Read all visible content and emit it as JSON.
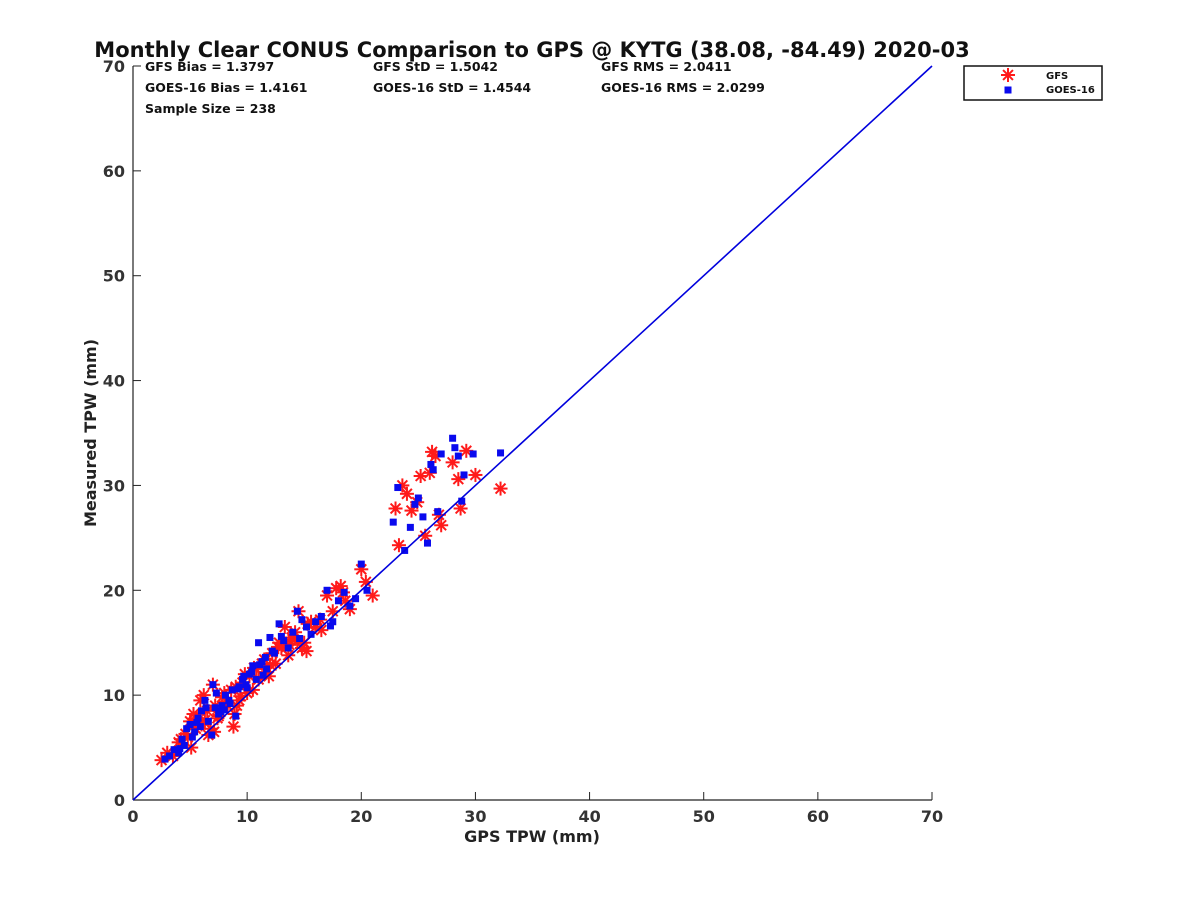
{
  "chart_data": {
    "type": "scatter",
    "title": "Monthly Clear CONUS Comparison to GPS @ KYTG (38.08, -84.49) 2020-03",
    "xlabel": "GPS TPW (mm)",
    "ylabel": "Measured TPW (mm)",
    "xlim": [
      0,
      70
    ],
    "ylim": [
      0,
      70
    ],
    "xticks": [
      0,
      10,
      20,
      30,
      40,
      50,
      60,
      70
    ],
    "yticks": [
      0,
      10,
      20,
      30,
      40,
      50,
      60,
      70
    ],
    "grid": false,
    "legend_position": "top-right-outside",
    "stats": [
      [
        "GFS Bias = 1.3797",
        "GFS StD = 1.5042",
        "GFS RMS = 2.0411"
      ],
      [
        "GOES-16 Bias = 1.4161",
        "GOES-16 StD = 1.4544",
        "GOES-16 RMS = 2.0299"
      ],
      [
        "Sample Size = 238",
        "",
        ""
      ]
    ],
    "reference_line": {
      "x": [
        0,
        70
      ],
      "y": [
        0,
        70
      ],
      "color": "#0000dd"
    },
    "series": [
      {
        "name": "GFS",
        "marker": "asterisk",
        "color": "#ff1a1a",
        "x": [
          2.5,
          3.0,
          3.5,
          4.0,
          4.2,
          4.6,
          5.0,
          5.3,
          5.6,
          5.9,
          6.2,
          6.5,
          6.8,
          7.0,
          7.2,
          7.5,
          7.8,
          8.0,
          8.3,
          8.6,
          8.8,
          9.0,
          9.3,
          9.6,
          9.8,
          10.0,
          10.2,
          10.5,
          10.8,
          11.0,
          11.3,
          11.6,
          11.9,
          12.2,
          12.5,
          12.8,
          13.0,
          13.3,
          13.6,
          13.9,
          14.2,
          14.5,
          14.8,
          15.0,
          15.3,
          15.6,
          16.0,
          16.4,
          17.0,
          17.5,
          17.8,
          18.2,
          18.6,
          19.0,
          20.0,
          20.4,
          21.0,
          4.8,
          5.5,
          6.0,
          6.3,
          7.1,
          7.4,
          8.2,
          8.9,
          9.4,
          10.6,
          11.5,
          12.0,
          13.7,
          14.0,
          15.2,
          16.5,
          23.0,
          23.3,
          23.6,
          24.0,
          24.4,
          24.9,
          25.2,
          25.6,
          26.0,
          26.2,
          26.5,
          26.8,
          27.0,
          28.0,
          28.5,
          28.7,
          29.2,
          30.0,
          32.2,
          5.1,
          6.6,
          9.1,
          12.7,
          14.4,
          18.4
        ],
        "y": [
          3.8,
          4.5,
          4.2,
          5.5,
          5.8,
          6.3,
          7.5,
          8.2,
          7.8,
          9.5,
          10.0,
          8.5,
          6.8,
          11.0,
          9.0,
          8.0,
          9.8,
          10.2,
          9.0,
          10.5,
          7.0,
          10.8,
          9.5,
          11.2,
          12.0,
          10.2,
          11.8,
          10.5,
          12.5,
          11.5,
          13.0,
          12.2,
          11.8,
          14.0,
          13.0,
          15.0,
          14.5,
          16.5,
          13.8,
          15.5,
          16.0,
          18.0,
          14.5,
          15.0,
          16.8,
          17.0,
          16.5,
          17.2,
          19.5,
          18.0,
          20.2,
          20.4,
          19.0,
          18.2,
          22.0,
          20.8,
          19.5,
          6.0,
          6.8,
          7.2,
          7.6,
          6.5,
          7.8,
          9.4,
          8.2,
          9.9,
          12.6,
          13.4,
          12.9,
          14.8,
          15.3,
          14.2,
          16.2,
          27.8,
          24.3,
          30.0,
          29.2,
          27.6,
          28.4,
          30.9,
          25.2,
          31.2,
          33.2,
          32.8,
          27.2,
          26.2,
          32.2,
          30.6,
          27.8,
          33.3,
          31.0,
          29.7,
          5.0,
          6.2,
          9.0,
          14.6,
          15.2,
          19.8
        ]
      },
      {
        "name": "GOES-16",
        "marker": "square",
        "color": "#0a0aee",
        "x": [
          2.8,
          3.2,
          3.6,
          4.0,
          4.3,
          4.7,
          5.0,
          5.4,
          5.7,
          6.0,
          6.3,
          6.6,
          7.0,
          7.2,
          7.5,
          7.8,
          8.1,
          8.4,
          8.7,
          9.0,
          9.3,
          9.6,
          9.9,
          10.2,
          10.5,
          10.8,
          11.0,
          11.3,
          11.7,
          12.0,
          12.4,
          12.8,
          13.2,
          13.6,
          14.0,
          14.4,
          14.8,
          15.2,
          15.6,
          16.0,
          16.5,
          17.0,
          17.5,
          18.0,
          18.5,
          19.0,
          19.5,
          20.0,
          20.5,
          4.5,
          5.2,
          5.9,
          6.4,
          6.9,
          7.3,
          8.0,
          8.5,
          9.2,
          9.7,
          10.4,
          11.1,
          11.6,
          12.2,
          13.0,
          22.8,
          23.2,
          23.8,
          24.3,
          24.7,
          25.0,
          25.4,
          25.8,
          26.1,
          26.3,
          26.7,
          27.0,
          28.0,
          28.2,
          28.5,
          28.8,
          29.0,
          29.8,
          32.2,
          4.1,
          5.6,
          7.7,
          10.0,
          11.4,
          14.6,
          17.3
        ],
        "y": [
          3.9,
          4.2,
          4.8,
          4.5,
          5.8,
          6.8,
          7.2,
          6.5,
          7.8,
          8.5,
          9.5,
          7.5,
          11.0,
          8.8,
          8.2,
          9.0,
          10.0,
          9.5,
          10.5,
          8.0,
          10.8,
          11.5,
          11.0,
          12.0,
          12.8,
          11.5,
          15.0,
          13.2,
          12.5,
          15.5,
          14.0,
          16.8,
          15.2,
          14.5,
          16.0,
          18.0,
          17.2,
          16.5,
          15.8,
          17.0,
          17.5,
          20.0,
          17.0,
          19.0,
          19.8,
          18.5,
          19.2,
          22.5,
          20.0,
          5.2,
          6.0,
          7.0,
          8.8,
          6.2,
          10.2,
          8.6,
          9.2,
          10.6,
          11.8,
          12.2,
          12.9,
          13.6,
          14.2,
          15.6,
          26.5,
          29.8,
          23.8,
          26.0,
          28.2,
          28.8,
          27.0,
          24.5,
          32.0,
          31.5,
          27.5,
          33.0,
          34.5,
          33.6,
          32.8,
          28.5,
          31.0,
          33.0,
          33.1,
          4.9,
          7.4,
          8.4,
          10.7,
          11.9,
          15.4,
          16.6
        ]
      }
    ]
  }
}
